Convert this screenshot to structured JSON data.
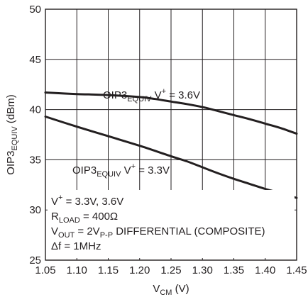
{
  "chart_data": {
    "type": "line",
    "xlim": [
      1.05,
      1.45
    ],
    "ylim": [
      25,
      50
    ],
    "x_ticks": [
      "1.05",
      "1.10",
      "1.15",
      "1.20",
      "1.25",
      "1.30",
      "1.35",
      "1.40",
      "1.45"
    ],
    "y_ticks": [
      "25",
      "30",
      "35",
      "40",
      "45",
      "50"
    ],
    "grid": true,
    "xlabel": {
      "main": "V",
      "sub": "CM",
      "tail": " (V)"
    },
    "ylabel": {
      "main": "OIP3",
      "sub": "EQUIV",
      "tail": " (dBm)"
    },
    "series": [
      {
        "label": {
          "main": "OIP3",
          "sub": "EQUIV",
          "mid": " V",
          "sup": "+",
          "tail": " = 3.6V"
        },
        "x": [
          1.05,
          1.1,
          1.15,
          1.2,
          1.225,
          1.25,
          1.275,
          1.3,
          1.325,
          1.35,
          1.375,
          1.4,
          1.425,
          1.45
        ],
        "y": [
          41.7,
          41.55,
          41.45,
          41.25,
          41.05,
          40.8,
          40.55,
          40.25,
          39.85,
          39.45,
          39.05,
          38.6,
          38.15,
          37.6
        ]
      },
      {
        "label": {
          "main": "OIP3",
          "sub": "EQUIV",
          "mid": " V",
          "sup": "+",
          "tail": " = 3.3V"
        },
        "x": [
          1.05,
          1.1,
          1.15,
          1.2,
          1.25,
          1.275,
          1.3,
          1.325,
          1.35,
          1.375,
          1.4,
          1.425,
          1.45
        ],
        "y": [
          39.3,
          38.3,
          37.35,
          36.4,
          35.35,
          34.85,
          34.25,
          33.65,
          33.1,
          32.6,
          32.1,
          31.65,
          31.2
        ]
      }
    ],
    "conditions": [
      {
        "main": "V",
        "sup": "+",
        "tail": " = 3.3V, 3.6V"
      },
      {
        "main": "R",
        "sub": "LOAD",
        "tail": " = 400Ω"
      },
      {
        "main": "V",
        "sub": "OUT",
        "mid": " = 2V",
        "sub2": "P-P",
        "tail": " DIFFERENTIAL (COMPOSITE)"
      },
      {
        "main": "Δf = 1MHz"
      }
    ]
  }
}
